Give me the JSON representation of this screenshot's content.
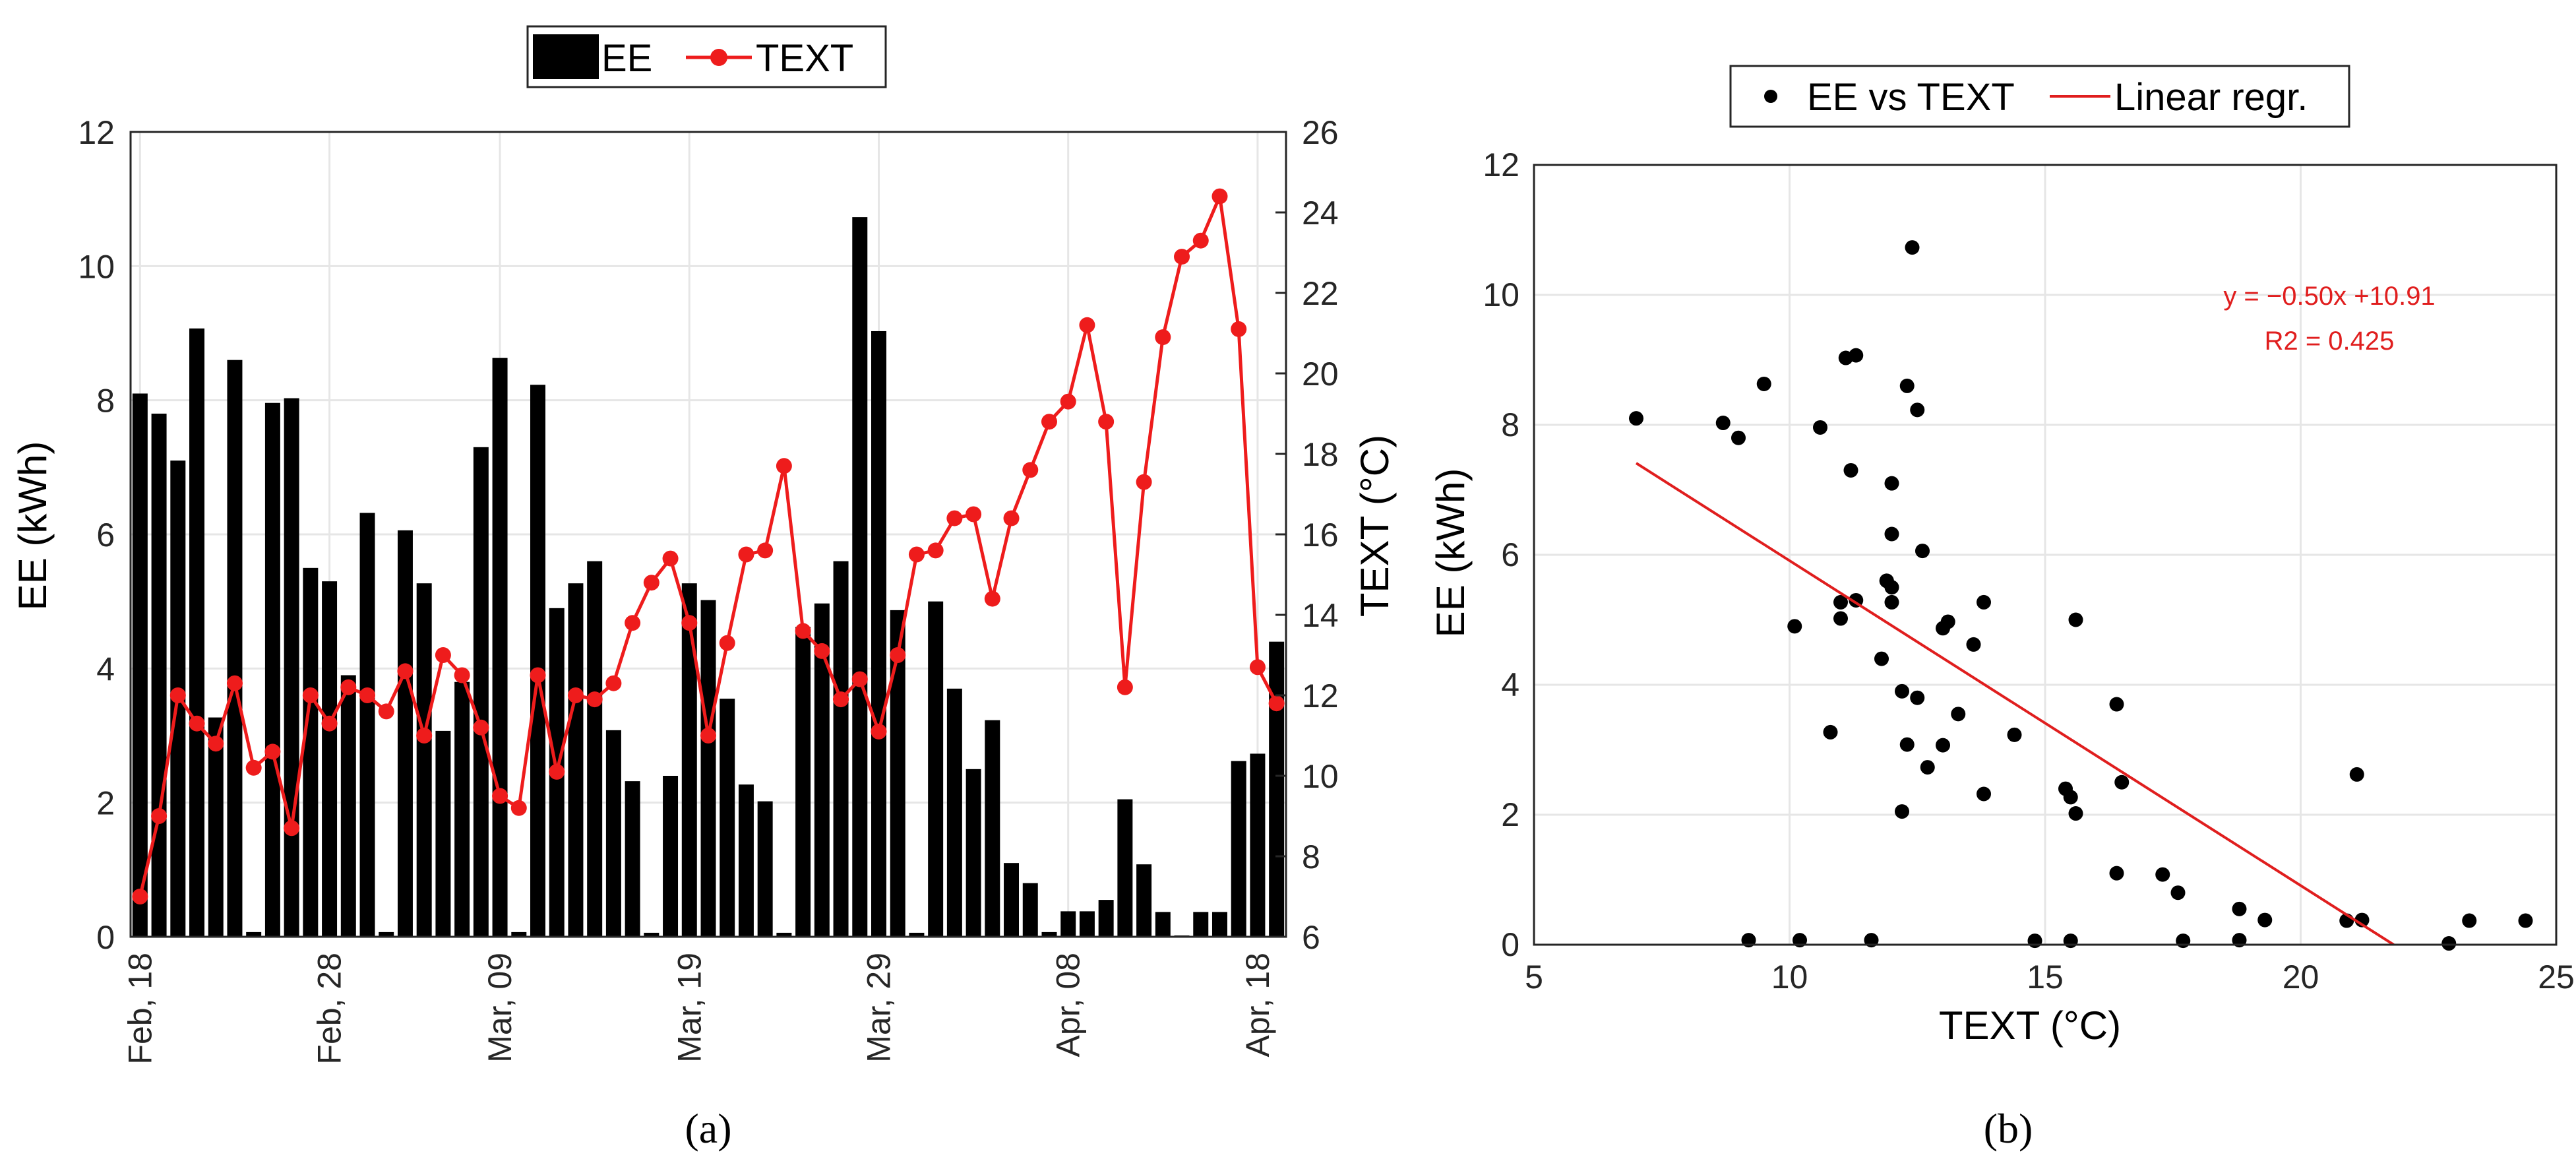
{
  "colors": {
    "ee": "#000000",
    "text": "#ee1c1c",
    "regression": "#e01e1e",
    "grid": "#e6e6e6"
  },
  "panels": {
    "a": "(a)",
    "b": "(b)"
  },
  "chart_data": [
    {
      "type": "bar+line",
      "title": "",
      "xlabel": "",
      "ylabel": "EE (kWh)",
      "y2label": "TEXT (°C)",
      "ylim": [
        0,
        12
      ],
      "y2lim": [
        6,
        26
      ],
      "yticks": [
        "0",
        "2",
        "4",
        "6",
        "8",
        "10",
        "12"
      ],
      "y2ticks": [
        "6",
        "8",
        "10",
        "12",
        "14",
        "16",
        "18",
        "20",
        "22",
        "24",
        "26"
      ],
      "xticks": [
        {
          "day": 1,
          "label": "Feb, 18"
        },
        {
          "day": 11,
          "label": "Feb, 28"
        },
        {
          "day": 20,
          "label": "Mar, 09"
        },
        {
          "day": 30,
          "label": "Mar, 19"
        },
        {
          "day": 40,
          "label": "Mar, 29"
        },
        {
          "day": 50,
          "label": "Apr, 08"
        },
        {
          "day": 60,
          "label": "Apr, 18"
        }
      ],
      "grid": true,
      "legend": {
        "position": "top-center",
        "entries": [
          "EE",
          "TEXT"
        ]
      },
      "series": [
        {
          "name": "EE",
          "type": "bar",
          "axis": "left",
          "values": [
            8.1,
            7.8,
            7.1,
            9.07,
            3.27,
            8.6,
            0.07,
            7.96,
            8.03,
            5.5,
            5.3,
            3.9,
            6.32,
            0.07,
            6.06,
            5.27,
            3.07,
            3.8,
            7.3,
            8.63,
            0.07,
            8.23,
            4.9,
            5.27,
            5.6,
            3.08,
            2.32,
            0.06,
            2.4,
            5.27,
            5.02,
            3.55,
            2.27,
            2.02,
            0.06,
            4.62,
            4.97,
            5.6,
            10.73,
            9.03,
            4.87,
            0.06,
            5.0,
            3.7,
            2.5,
            3.23,
            1.1,
            0.8,
            0.07,
            0.38,
            0.38,
            0.55,
            2.05,
            1.08,
            0.37,
            0.02,
            0.37,
            0.37,
            2.62,
            2.73,
            4.4
          ]
        },
        {
          "name": "TEXT",
          "type": "line",
          "axis": "right",
          "values": [
            7.0,
            9.0,
            12.0,
            11.3,
            10.8,
            12.3,
            10.2,
            10.6,
            8.7,
            12.0,
            11.3,
            12.2,
            12.0,
            11.6,
            12.6,
            11.0,
            13.0,
            12.5,
            11.2,
            9.5,
            9.2,
            12.5,
            10.1,
            12.0,
            11.9,
            12.3,
            13.8,
            14.8,
            15.4,
            13.8,
            11.0,
            13.3,
            15.5,
            15.6,
            17.7,
            13.6,
            13.1,
            11.9,
            12.4,
            11.1,
            13.0,
            15.5,
            15.6,
            16.4,
            16.5,
            14.4,
            16.4,
            17.6,
            18.8,
            19.3,
            21.2,
            18.8,
            12.2,
            17.3,
            20.9,
            22.9,
            23.3,
            24.4,
            21.1,
            12.7,
            11.8
          ]
        }
      ]
    },
    {
      "type": "scatter",
      "title": "",
      "xlabel": "TEXT (°C)",
      "ylabel": "EE (kWh)",
      "xlim": [
        5,
        25
      ],
      "ylim": [
        0,
        12
      ],
      "xticks": [
        "5",
        "10",
        "15",
        "20",
        "25"
      ],
      "yticks": [
        "0",
        "2",
        "4",
        "6",
        "8",
        "10",
        "12"
      ],
      "grid": true,
      "legend": {
        "position": "top-center",
        "entries": [
          "EE vs TEXT",
          "Linear regr."
        ]
      },
      "series": [
        {
          "name": "EE vs TEXT",
          "type": "scatter",
          "points": [
            [
              7.0,
              8.1
            ],
            [
              9.0,
              7.8
            ],
            [
              12.0,
              7.1
            ],
            [
              11.3,
              9.07
            ],
            [
              10.8,
              3.27
            ],
            [
              12.3,
              8.6
            ],
            [
              10.2,
              0.07
            ],
            [
              10.6,
              7.96
            ],
            [
              8.7,
              8.03
            ],
            [
              12.0,
              5.5
            ],
            [
              11.3,
              5.3
            ],
            [
              12.2,
              3.9
            ],
            [
              12.0,
              6.32
            ],
            [
              11.6,
              0.07
            ],
            [
              12.6,
              6.06
            ],
            [
              11.0,
              5.27
            ],
            [
              13.0,
              3.07
            ],
            [
              12.5,
              3.8
            ],
            [
              11.2,
              7.3
            ],
            [
              9.5,
              8.63
            ],
            [
              9.2,
              0.07
            ],
            [
              12.5,
              8.23
            ],
            [
              10.1,
              4.9
            ],
            [
              12.0,
              5.27
            ],
            [
              11.9,
              5.6
            ],
            [
              12.3,
              3.08
            ],
            [
              13.8,
              2.32
            ],
            [
              14.8,
              0.06
            ],
            [
              15.4,
              2.4
            ],
            [
              13.8,
              5.27
            ],
            [
              11.0,
              5.02
            ],
            [
              13.3,
              3.55
            ],
            [
              15.5,
              2.27
            ],
            [
              15.6,
              2.02
            ],
            [
              17.7,
              0.06
            ],
            [
              13.6,
              4.62
            ],
            [
              13.1,
              4.97
            ],
            [
              11.9,
              5.6
            ],
            [
              12.4,
              10.73
            ],
            [
              11.1,
              9.03
            ],
            [
              13.0,
              4.87
            ],
            [
              15.5,
              0.06
            ],
            [
              15.6,
              5.0
            ],
            [
              16.4,
              3.7
            ],
            [
              16.5,
              2.5
            ],
            [
              14.4,
              3.23
            ],
            [
              16.4,
              1.1
            ],
            [
              17.6,
              0.8
            ],
            [
              18.8,
              0.07
            ],
            [
              19.3,
              0.38
            ],
            [
              21.2,
              0.38
            ],
            [
              18.8,
              0.55
            ],
            [
              12.2,
              2.05
            ],
            [
              17.3,
              1.08
            ],
            [
              20.9,
              0.37
            ],
            [
              22.9,
              0.02
            ],
            [
              23.3,
              0.37
            ],
            [
              24.4,
              0.37
            ],
            [
              21.1,
              2.62
            ],
            [
              12.7,
              2.73
            ],
            [
              11.8,
              4.4
            ]
          ]
        },
        {
          "name": "Linear regr.",
          "type": "line",
          "slope": -0.5,
          "intercept": 10.91,
          "x_range": [
            7.0,
            21.82
          ]
        }
      ],
      "annotations": [
        "y = −0.50x +10.91",
        "R2 = 0.425"
      ]
    }
  ]
}
